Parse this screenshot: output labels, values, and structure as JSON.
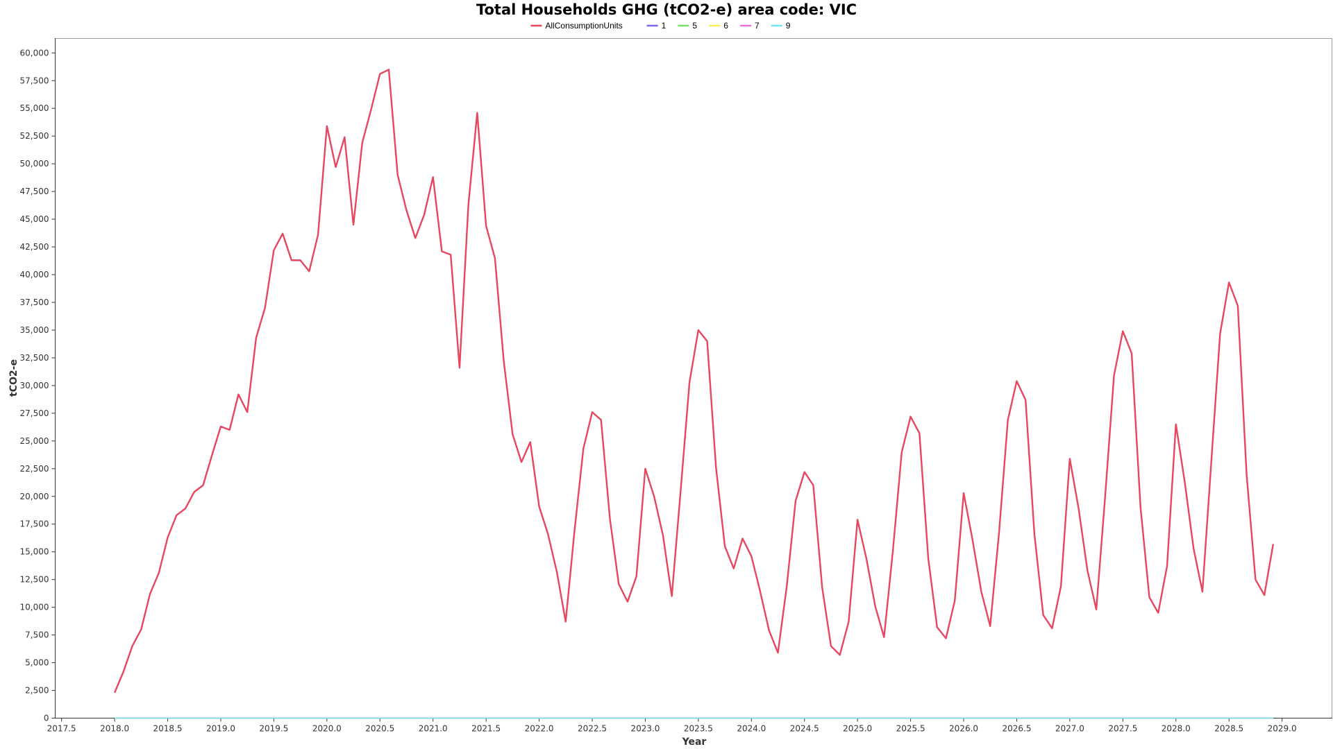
{
  "chart_data": {
    "type": "line",
    "title": "Total Households GHG (tCO2-e) area code: VIC",
    "xlabel": "Year",
    "ylabel": "tCO2-e",
    "xlim": [
      2017.44,
      2029.47
    ],
    "ylim": [
      0,
      61300
    ],
    "x_ticks": [
      "2017.5",
      "2018.0",
      "2018.5",
      "2019.0",
      "2019.5",
      "2020.0",
      "2020.5",
      "2021.0",
      "2021.5",
      "2022.0",
      "2022.5",
      "2023.0",
      "2023.5",
      "2024.0",
      "2024.5",
      "2025.0",
      "2025.5",
      "2026.0",
      "2026.5",
      "2027.0",
      "2027.5",
      "2028.0",
      "2028.5",
      "2029.0"
    ],
    "y_ticks": [
      "0",
      "2,500",
      "5,000",
      "7,500",
      "10,000",
      "12,500",
      "15,000",
      "17,500",
      "20,000",
      "22,500",
      "25,000",
      "27,500",
      "30,000",
      "32,500",
      "35,000",
      "37,500",
      "40,000",
      "42,500",
      "45,000",
      "47,500",
      "50,000",
      "52,500",
      "55,000",
      "57,500",
      "60,000"
    ],
    "legend_position": "top-center",
    "grid": false,
    "x_start": 2018.0,
    "x_step": 0.08333,
    "series": [
      {
        "name": "AllConsumptionUnits",
        "color": "#e8455f",
        "values": [
          2300,
          4200,
          6500,
          8000,
          11200,
          13100,
          16300,
          18300,
          18900,
          20400,
          21000,
          23700,
          26300,
          26000,
          29200,
          27600,
          34300,
          37000,
          42200,
          43700,
          41300,
          41300,
          40300,
          43600,
          53400,
          49700,
          52400,
          44500,
          51900,
          54900,
          58100,
          58500,
          49000,
          45800,
          43300,
          45400,
          48800,
          42100,
          41800,
          31600,
          46300,
          54600,
          44400,
          41500,
          32200,
          25600,
          23100,
          24900,
          19100,
          16600,
          13200,
          8700,
          16900,
          24300,
          27600,
          26900,
          18000,
          12100,
          10500,
          12800,
          22500,
          20000,
          16500,
          11000,
          20500,
          30300,
          35000,
          34000,
          22600,
          15500,
          13500,
          16200,
          14600,
          11400,
          7900,
          5900,
          11900,
          19600,
          22200,
          21000,
          11800,
          6500,
          5700,
          8700,
          17900,
          14400,
          10100,
          7300,
          15100,
          24000,
          27200,
          25700,
          14400,
          8200,
          7200,
          10600,
          20300,
          16100,
          11400,
          8300,
          16700,
          26900,
          30400,
          28700,
          16600,
          9300,
          8100,
          11900,
          23400,
          18900,
          13300,
          9800,
          20000,
          30900,
          34900,
          32900,
          19000,
          10900,
          9500,
          13700,
          26500,
          21300,
          15300,
          11400,
          23100,
          34700,
          39300,
          37200,
          21900,
          12500,
          11100,
          15700
        ]
      },
      {
        "name": "1",
        "color": "#7b68ee",
        "values": [
          0,
          0
        ]
      },
      {
        "name": "5",
        "color": "#7ddc6a",
        "values": [
          0,
          0
        ]
      },
      {
        "name": "6",
        "color": "#f5f05a",
        "values": [
          0,
          0
        ]
      },
      {
        "name": "7",
        "color": "#ee70d6",
        "values": [
          0,
          0
        ]
      },
      {
        "name": "9",
        "color": "#74e4ef",
        "values": [
          0,
          0
        ]
      }
    ]
  }
}
